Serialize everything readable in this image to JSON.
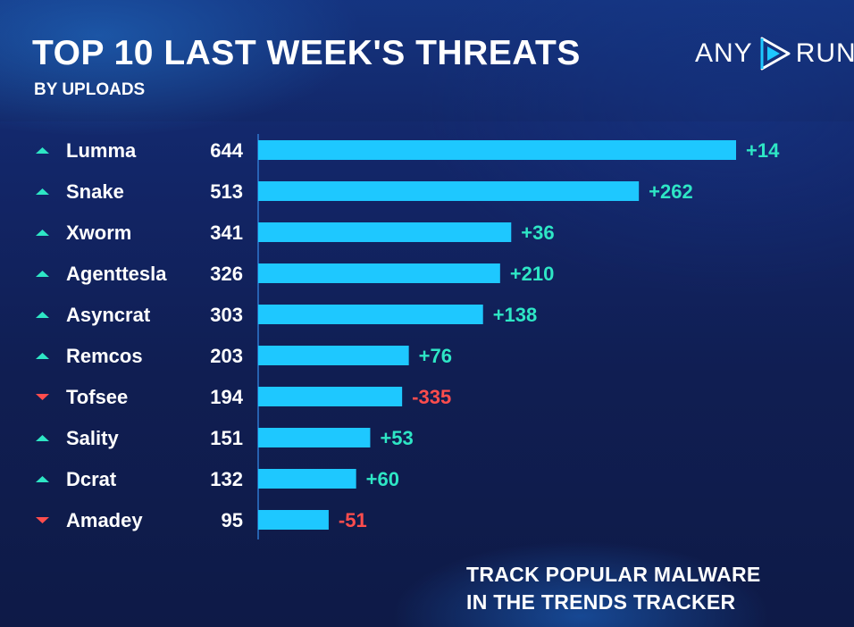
{
  "header": {
    "title": "TOP 10 LAST WEEK'S THREATS",
    "subtitle": "BY UPLOADS",
    "logo_left": "ANY",
    "logo_right": "RUN"
  },
  "footer": {
    "line1": "TRACK POPULAR MALWARE",
    "line2": "IN THE TRENDS TRACKER"
  },
  "colors": {
    "bar": "#1ec8ff",
    "up": "#2ee6c5",
    "down": "#ff4d4d",
    "axis": "#2f78d0"
  },
  "chart_data": {
    "type": "bar",
    "orientation": "horizontal",
    "categories": [
      "Lumma",
      "Snake",
      "Xworm",
      "Agenttesla",
      "Asyncrat",
      "Remcos",
      "Tofsee",
      "Sality",
      "Dcrat",
      "Amadey"
    ],
    "values": [
      644,
      513,
      341,
      326,
      303,
      203,
      194,
      151,
      132,
      95
    ],
    "changes": [
      "+14",
      "+262",
      "+36",
      "+210",
      "+138",
      "+76",
      "-335",
      "+53",
      "+60",
      "-51"
    ],
    "trend": [
      "up",
      "up",
      "up",
      "up",
      "up",
      "up",
      "down",
      "up",
      "up",
      "down"
    ],
    "xlim": [
      0,
      644
    ],
    "grid": false,
    "legend": "none"
  }
}
